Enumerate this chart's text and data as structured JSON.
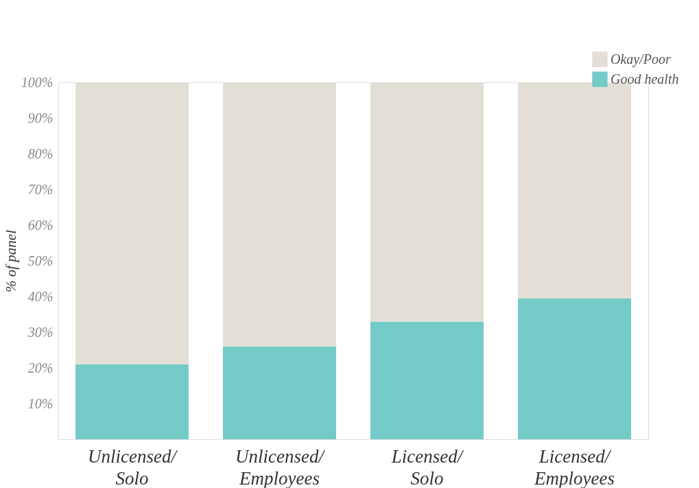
{
  "chart_data": {
    "type": "bar",
    "stacked": true,
    "ylabel": "% of panel",
    "categories": [
      "Unlicensed/ Solo",
      "Unlicensed/ Employees",
      "Licensed/ Solo",
      "Licensed/ Employees"
    ],
    "series": [
      {
        "name": "Good health",
        "color": "#74cac7",
        "values": [
          21,
          26,
          33,
          39.5
        ]
      },
      {
        "name": "Okay/Poor",
        "color": "#e3ded6",
        "values": [
          79,
          74,
          67,
          60.5
        ]
      }
    ],
    "ylim": [
      0,
      100
    ],
    "yticks": [
      {
        "value": 10,
        "label": "10%"
      },
      {
        "value": 20,
        "label": "20%"
      },
      {
        "value": 30,
        "label": "30%"
      },
      {
        "value": 40,
        "label": "40%"
      },
      {
        "value": 50,
        "label": "50%"
      },
      {
        "value": 60,
        "label": "60%"
      },
      {
        "value": 70,
        "label": "70%"
      },
      {
        "value": 80,
        "label": "80%"
      },
      {
        "value": 90,
        "label": "90%"
      },
      {
        "value": 100,
        "label": "100%"
      }
    ],
    "grid": false,
    "legend": "top right"
  }
}
